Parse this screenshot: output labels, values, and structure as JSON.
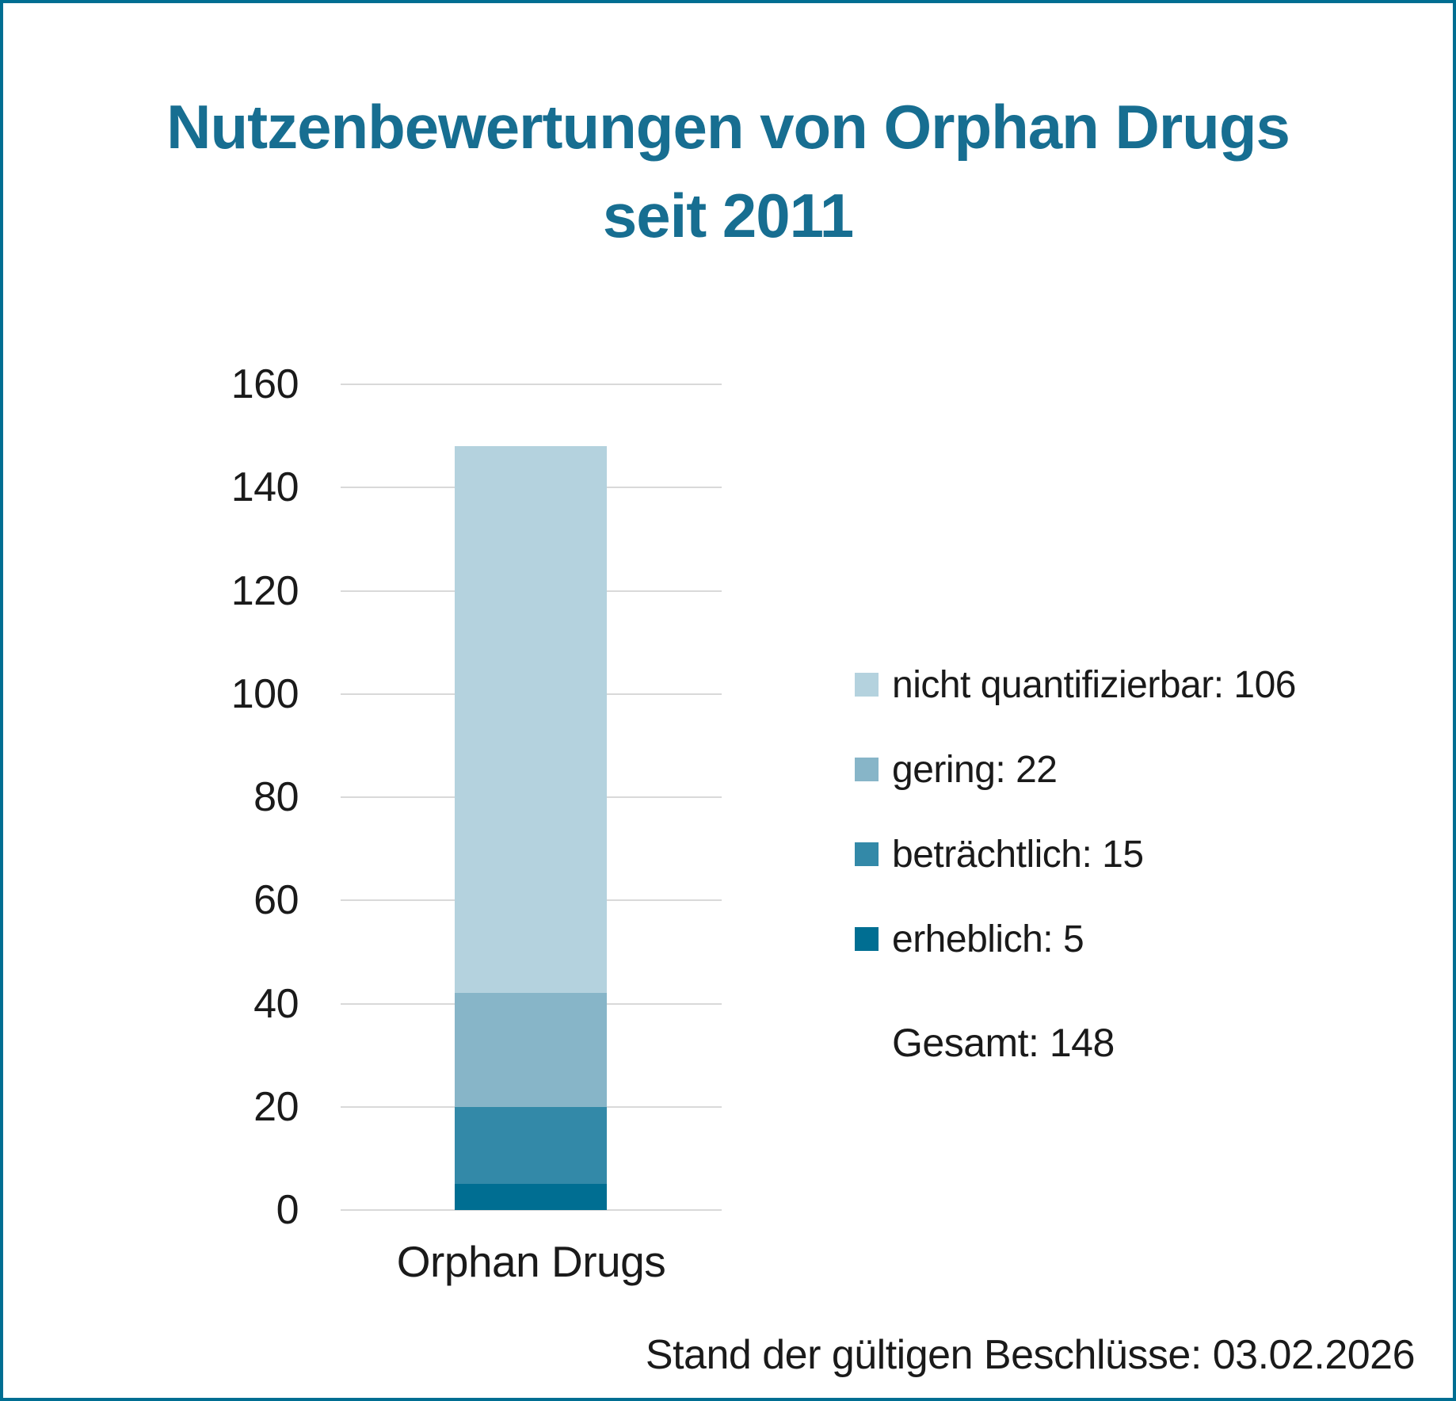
{
  "title": {
    "line1": "Nutzenbewertungen von Orphan Drugs",
    "line2": "seit 2011"
  },
  "footer": {
    "note": "Stand der gültigen Beschlüsse: 03.02.2026"
  },
  "colors": {
    "accent_teal": "#006e92",
    "title_teal": "#176e91",
    "gridline_gray": "#d9d9d9",
    "text_black": "#1a1a1a"
  },
  "chart_data": {
    "type": "bar",
    "stacked": true,
    "title": "Nutzenbewertungen von Orphan Drugs seit 2011",
    "categories": [
      "Orphan Drugs"
    ],
    "series": [
      {
        "name": "nicht quantifizierbar",
        "values": [
          106
        ],
        "color": "#b4d2de"
      },
      {
        "name": "gering",
        "values": [
          22
        ],
        "color": "#87b5c8"
      },
      {
        "name": "beträchtlich",
        "values": [
          15
        ],
        "color": "#3389a8"
      },
      {
        "name": "erheblich",
        "values": [
          5
        ],
        "color": "#006e92"
      }
    ],
    "total": {
      "label": "Gesamt",
      "value": 148
    },
    "xlabel": "",
    "ylabel": "",
    "ylim": [
      0,
      160
    ],
    "ytick_step": 20,
    "grid": true,
    "legend_position": "right",
    "annotation": "Stand der gültigen Beschlüsse: 03.02.2026"
  }
}
